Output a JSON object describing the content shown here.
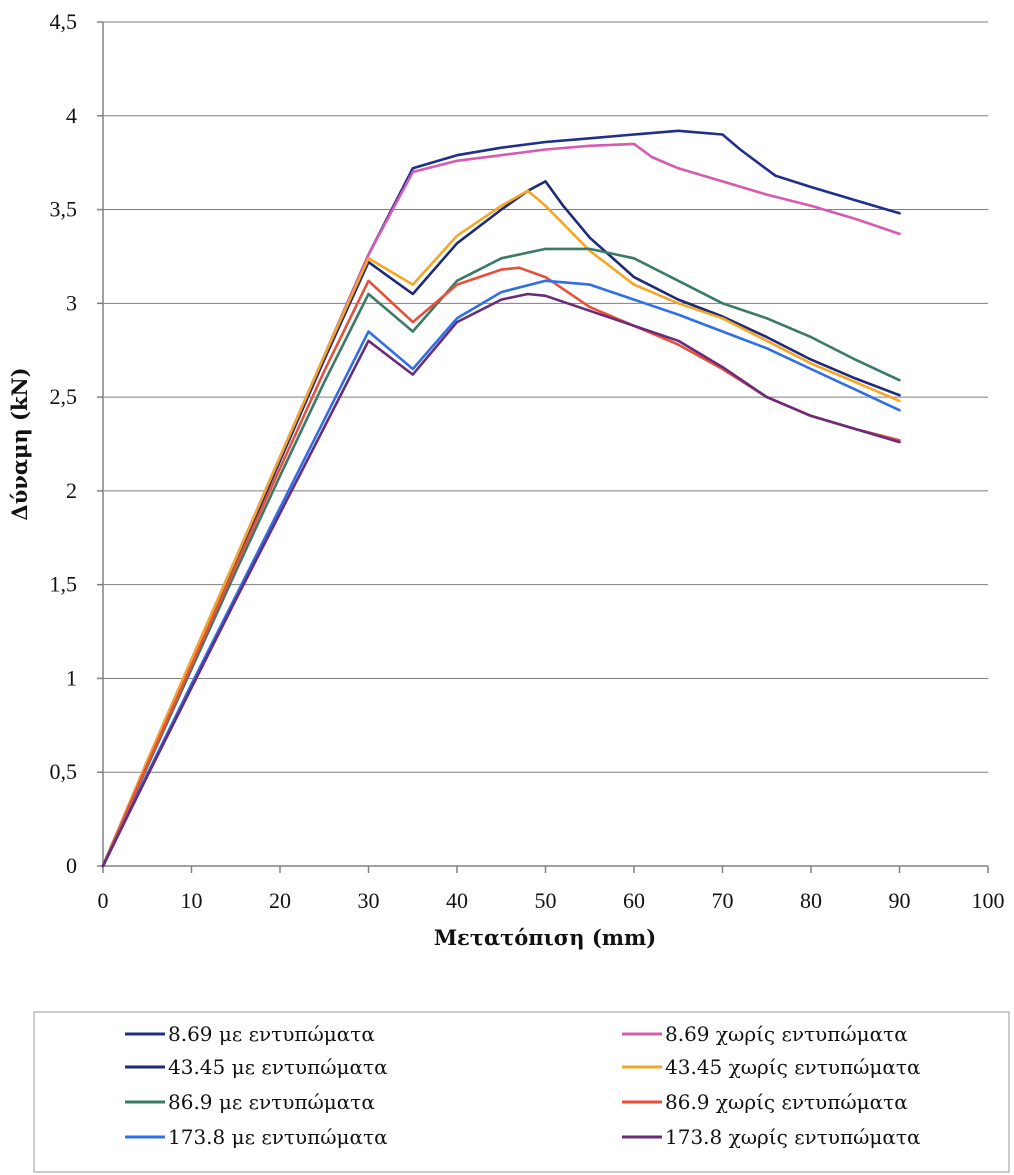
{
  "chart_data": {
    "type": "line",
    "title": "",
    "xlabel": "Μετατόπιση (mm)",
    "ylabel": "Δύναμη (kN)",
    "xlim": [
      0,
      100
    ],
    "ylim": [
      0,
      4.5
    ],
    "x_ticks": [
      "0",
      "10",
      "20",
      "30",
      "40",
      "50",
      "60",
      "70",
      "80",
      "90",
      "100"
    ],
    "y_ticks": [
      "0",
      "0,5",
      "1",
      "1,5",
      "2",
      "2,5",
      "3",
      "3,5",
      "4",
      "4,5"
    ],
    "grid": "horizontal",
    "legend_position": "bottom",
    "series": [
      {
        "name": "8.69 με εντυπώματα",
        "color": "#1f2f8c",
        "x": [
          0,
          5,
          10,
          15,
          20,
          25,
          30,
          35,
          40,
          45,
          50,
          55,
          60,
          65,
          70,
          72,
          74,
          76,
          80,
          85,
          90
        ],
        "y": [
          0,
          0.56,
          1.1,
          1.64,
          2.18,
          2.72,
          3.26,
          3.72,
          3.79,
          3.83,
          3.86,
          3.88,
          3.9,
          3.92,
          3.9,
          3.82,
          3.75,
          3.68,
          3.62,
          3.55,
          3.48
        ]
      },
      {
        "name": "8.69 χωρίς εντυπώματα",
        "color": "#d65ab0",
        "x": [
          0,
          5,
          10,
          15,
          20,
          25,
          30,
          35,
          40,
          45,
          50,
          55,
          60,
          62,
          65,
          70,
          75,
          80,
          85,
          90
        ],
        "y": [
          0,
          0.56,
          1.1,
          1.64,
          2.18,
          2.72,
          3.26,
          3.7,
          3.76,
          3.79,
          3.82,
          3.84,
          3.85,
          3.78,
          3.72,
          3.65,
          3.58,
          3.52,
          3.45,
          3.37
        ]
      },
      {
        "name": "43.45 με εντυπώματα",
        "color": "#1e2a78",
        "x": [
          0,
          5,
          10,
          15,
          20,
          25,
          30,
          35,
          40,
          45,
          48,
          50,
          52,
          55,
          60,
          65,
          70,
          75,
          80,
          85,
          90
        ],
        "y": [
          0,
          0.55,
          1.08,
          1.62,
          2.16,
          2.7,
          3.22,
          3.05,
          3.32,
          3.5,
          3.6,
          3.65,
          3.52,
          3.35,
          3.14,
          3.02,
          2.93,
          2.82,
          2.7,
          2.6,
          2.51
        ]
      },
      {
        "name": "43.45 χωρίς εντυπώματα",
        "color": "#f5a623",
        "x": [
          0,
          5,
          10,
          15,
          20,
          25,
          30,
          35,
          40,
          45,
          48,
          50,
          55,
          60,
          65,
          70,
          75,
          80,
          85,
          90
        ],
        "y": [
          0,
          0.56,
          1.1,
          1.64,
          2.18,
          2.72,
          3.24,
          3.1,
          3.36,
          3.52,
          3.6,
          3.52,
          3.28,
          3.1,
          3.0,
          2.92,
          2.8,
          2.68,
          2.58,
          2.48
        ]
      },
      {
        "name": "86.9 με εντυπώματα",
        "color": "#3a7a66",
        "x": [
          0,
          5,
          10,
          15,
          20,
          25,
          30,
          35,
          40,
          45,
          50,
          55,
          60,
          65,
          70,
          75,
          80,
          85,
          90
        ],
        "y": [
          0,
          0.53,
          1.05,
          1.57,
          2.08,
          2.58,
          3.05,
          2.85,
          3.12,
          3.24,
          3.29,
          3.29,
          3.24,
          3.12,
          3.0,
          2.92,
          2.82,
          2.7,
          2.59
        ]
      },
      {
        "name": "86.9 χωρίς εντυπώματα",
        "color": "#e8503a",
        "x": [
          0,
          5,
          10,
          15,
          20,
          25,
          30,
          35,
          40,
          45,
          47,
          50,
          55,
          60,
          65,
          70,
          75,
          80,
          85,
          90
        ],
        "y": [
          0,
          0.54,
          1.07,
          1.6,
          2.12,
          2.64,
          3.12,
          2.9,
          3.1,
          3.18,
          3.19,
          3.14,
          2.98,
          2.88,
          2.78,
          2.65,
          2.5,
          2.4,
          2.33,
          2.27
        ]
      },
      {
        "name": "173.8 με εντυπώματα",
        "color": "#2f6fe8",
        "x": [
          0,
          5,
          10,
          15,
          20,
          25,
          30,
          35,
          40,
          45,
          50,
          55,
          60,
          65,
          70,
          75,
          80,
          85,
          90
        ],
        "y": [
          0,
          0.49,
          0.97,
          1.44,
          1.91,
          2.38,
          2.85,
          2.65,
          2.92,
          3.06,
          3.12,
          3.1,
          3.02,
          2.94,
          2.85,
          2.76,
          2.65,
          2.54,
          2.43
        ]
      },
      {
        "name": "173.8 χωρίς εντυπώματα",
        "color": "#6a2b7a",
        "x": [
          0,
          5,
          10,
          15,
          20,
          25,
          30,
          35,
          40,
          45,
          48,
          50,
          55,
          60,
          65,
          70,
          75,
          80,
          85,
          90
        ],
        "y": [
          0,
          0.48,
          0.95,
          1.42,
          1.88,
          2.34,
          2.8,
          2.62,
          2.9,
          3.02,
          3.05,
          3.04,
          2.96,
          2.88,
          2.8,
          2.66,
          2.5,
          2.4,
          2.33,
          2.26
        ]
      }
    ]
  }
}
